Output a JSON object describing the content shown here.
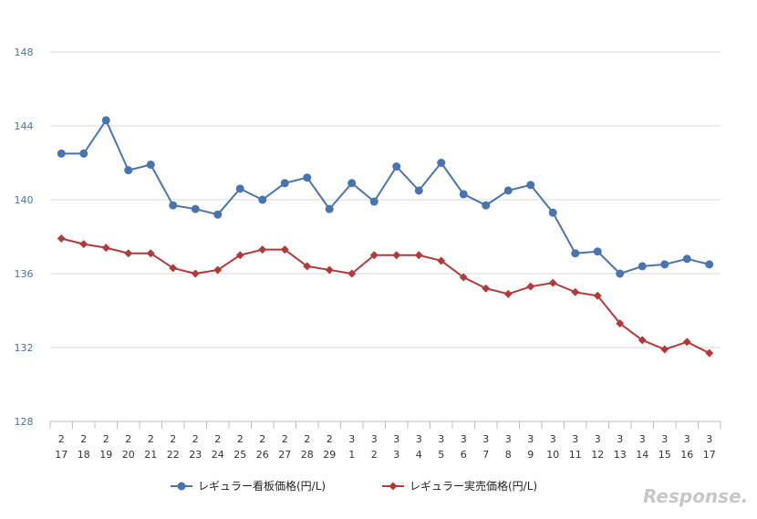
{
  "colors": {
    "series_blue": "#4a74b0",
    "series_red": "#b03b3b",
    "grid": "#d9d9d9",
    "ytick": "#4a72a8",
    "watermark": "#c8c8c8"
  },
  "watermark": {
    "text": "Response."
  },
  "chart_data": {
    "type": "line",
    "title": "",
    "xlabel": "",
    "ylabel": "",
    "ylim": [
      128,
      148
    ],
    "yticks": [
      128,
      132,
      136,
      140,
      144,
      148
    ],
    "grid": true,
    "legend_position": "bottom",
    "x_months": [
      "2",
      "2",
      "2",
      "2",
      "2",
      "2",
      "2",
      "2",
      "2",
      "2",
      "2",
      "2",
      "2",
      "3",
      "3",
      "3",
      "3",
      "3",
      "3",
      "3",
      "3",
      "3",
      "3",
      "3",
      "3",
      "3",
      "3",
      "3",
      "3",
      "3"
    ],
    "x_days": [
      "17",
      "18",
      "19",
      "20",
      "21",
      "22",
      "23",
      "24",
      "25",
      "26",
      "27",
      "28",
      "29",
      "1",
      "2",
      "3",
      "4",
      "5",
      "6",
      "7",
      "8",
      "9",
      "10",
      "11",
      "12",
      "13",
      "14",
      "15",
      "16",
      "17"
    ],
    "series": [
      {
        "name": "レギュラー看板価格(円/L)",
        "color": "#4a74b0",
        "marker": "circle",
        "values": [
          142.5,
          142.5,
          144.3,
          141.6,
          141.9,
          139.7,
          139.5,
          139.2,
          140.6,
          140.0,
          140.9,
          141.2,
          139.5,
          140.9,
          139.9,
          141.8,
          140.5,
          142.0,
          140.3,
          139.7,
          140.5,
          140.8,
          139.3,
          137.1,
          137.2,
          136.0,
          136.4,
          136.5,
          136.8,
          136.5
        ]
      },
      {
        "name": "レギュラー実売価格(円/L)",
        "color": "#b03b3b",
        "marker": "diamond",
        "values": [
          137.9,
          137.6,
          137.4,
          137.1,
          137.1,
          136.3,
          136.0,
          136.2,
          137.0,
          137.3,
          137.3,
          136.4,
          136.2,
          136.0,
          137.0,
          137.0,
          137.0,
          136.7,
          135.8,
          135.2,
          134.9,
          135.3,
          135.5,
          135.0,
          134.8,
          133.3,
          132.4,
          131.9,
          132.3,
          131.7
        ]
      }
    ]
  }
}
